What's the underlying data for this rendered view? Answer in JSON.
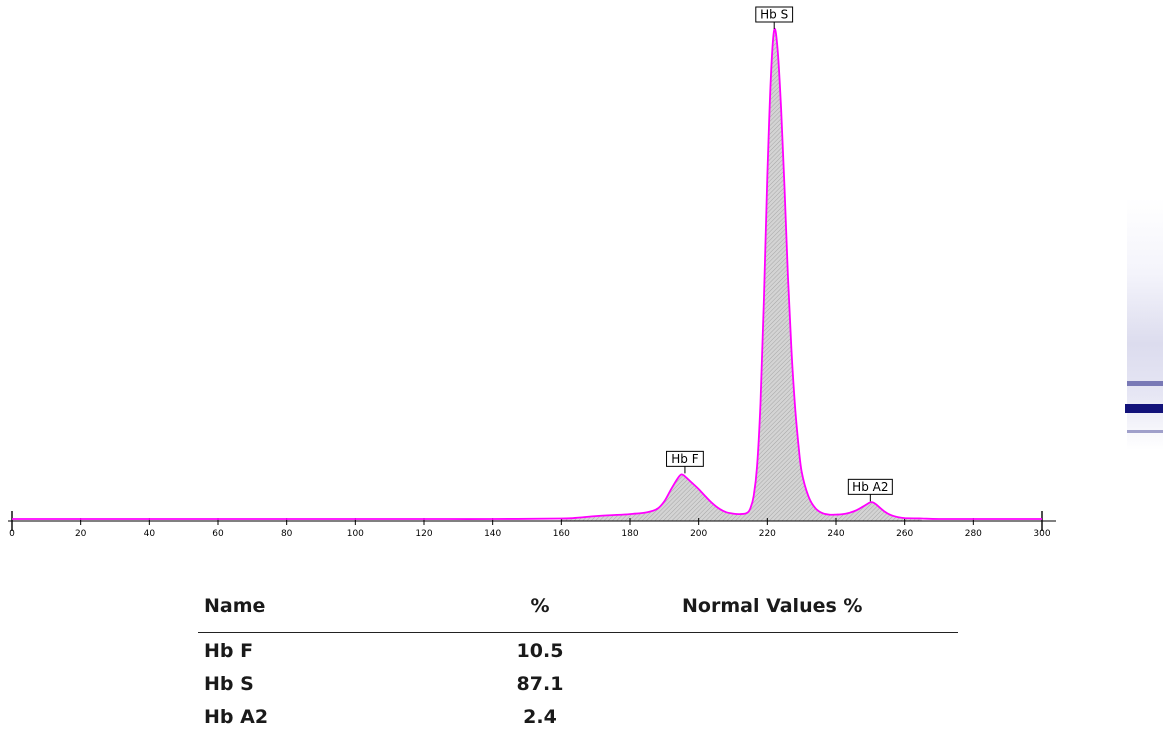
{
  "chart_data": {
    "type": "line",
    "title": "",
    "xlabel": "",
    "ylabel": "",
    "xlim": [
      0,
      300
    ],
    "ylim": [
      0,
      100
    ],
    "x_ticks": [
      0,
      20,
      40,
      60,
      80,
      100,
      120,
      140,
      160,
      180,
      200,
      220,
      240,
      260,
      280,
      300
    ],
    "tick_labels": [
      "0",
      "20",
      "40",
      "60",
      "80",
      "100",
      "120",
      "140",
      "160",
      "180",
      "200",
      "220",
      "240",
      "260",
      "280",
      "300"
    ],
    "grid": false,
    "series": [
      {
        "x": [
          0,
          20,
          40,
          60,
          80,
          100,
          120,
          140,
          160,
          165,
          170,
          175,
          180,
          185,
          188,
          190,
          192,
          194,
          195,
          196,
          198,
          200,
          202,
          204,
          206,
          208,
          210,
          212,
          214,
          215,
          216,
          217,
          218,
          219,
          220,
          221,
          222,
          223,
          224,
          225,
          226,
          227,
          228,
          229,
          230,
          232,
          234,
          236,
          238,
          240,
          242,
          244,
          246,
          248,
          250,
          251,
          252,
          254,
          256,
          258,
          260,
          265,
          270,
          280,
          290,
          300
        ],
        "y": [
          0.4,
          0.4,
          0.4,
          0.4,
          0.4,
          0.4,
          0.4,
          0.4,
          0.5,
          0.7,
          1.0,
          1.2,
          1.4,
          1.8,
          2.5,
          4.0,
          6.5,
          8.8,
          9.5,
          9.1,
          7.8,
          6.5,
          5.0,
          3.6,
          2.5,
          1.8,
          1.5,
          1.4,
          1.6,
          2.5,
          5.0,
          11.0,
          24.0,
          45.0,
          70.0,
          90.0,
          100.0,
          96.0,
          84.0,
          68.0,
          50.0,
          35.0,
          24.0,
          16.0,
          10.0,
          5.0,
          2.6,
          1.6,
          1.3,
          1.3,
          1.4,
          1.7,
          2.2,
          3.0,
          3.8,
          3.7,
          3.2,
          2.0,
          1.2,
          0.8,
          0.6,
          0.5,
          0.4,
          0.4,
          0.4,
          0.4
        ]
      }
    ],
    "annotations": [
      {
        "label": "Hb F",
        "x": 196,
        "y": 9.5
      },
      {
        "label": "Hb S",
        "x": 222,
        "y": 100.0
      },
      {
        "label": "Hb A2",
        "x": 250,
        "y": 3.8
      }
    ]
  },
  "colors": {
    "curve": "#ff00ff",
    "fill": "#cfcfcf",
    "hatch": "#9a9a9a",
    "band_dark": "#12127a",
    "band_light": "#6666aa"
  },
  "results": {
    "headers": {
      "name": "Name",
      "pct": "%",
      "normal": "Normal Values %"
    },
    "rows": [
      {
        "name": "Hb F",
        "pct": "10.5",
        "normal": ""
      },
      {
        "name": "Hb S",
        "pct": "87.1",
        "normal": ""
      },
      {
        "name": "Hb A2",
        "pct": "2.4",
        "normal": ""
      }
    ]
  }
}
